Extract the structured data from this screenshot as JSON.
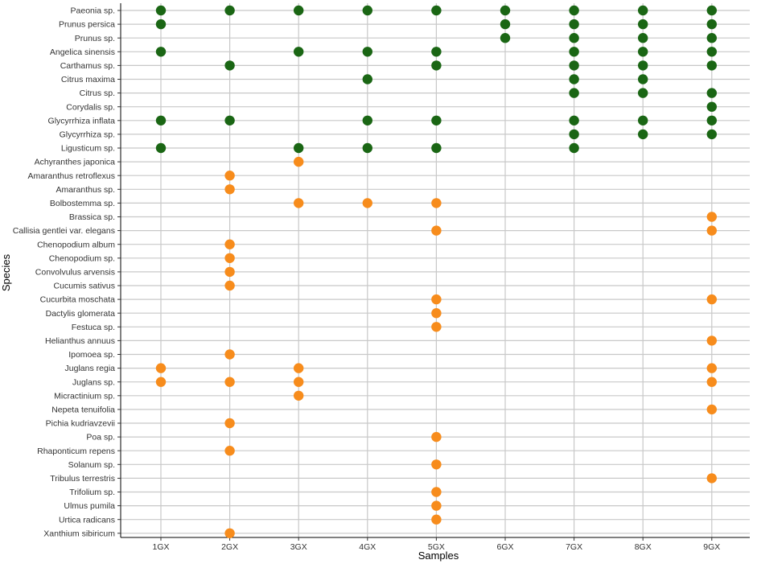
{
  "chart_data": {
    "type": "scatter",
    "xlabel": "Samples",
    "ylabel": "Species",
    "grid": true,
    "categories_x": [
      "1GX",
      "2GX",
      "3GX",
      "4GX",
      "5GX",
      "6GX",
      "7GX",
      "8GX",
      "9GX"
    ],
    "categories_y": [
      "Paeonia sp.",
      "Prunus persica",
      "Prunus sp.",
      "Angelica sinensis",
      "Carthamus sp.",
      "Citrus maxima",
      "Citrus sp.",
      "Corydalis sp.",
      "Glycyrrhiza inflata",
      "Glycyrrhiza sp.",
      "Ligusticum sp.",
      "Achyranthes japonica",
      "Amaranthus retroflexus",
      "Amaranthus sp.",
      "Bolbostemma sp.",
      "Brassica sp.",
      "Callisia gentlei var. elegans",
      "Chenopodium album",
      "Chenopodium sp.",
      "Convolvulus arvensis",
      "Cucumis sativus",
      "Cucurbita moschata",
      "Dactylis glomerata",
      "Festuca sp.",
      "Helianthus annuus",
      "Ipomoea sp.",
      "Juglans regia",
      "Juglans sp.",
      "Micractinium sp.",
      "Nepeta tenuifolia",
      "Pichia kudriavzevii",
      "Poa sp.",
      "Rhaponticum repens",
      "Solanum sp.",
      "Tribulus terrestris",
      "Trifolium sp.",
      "Ulmus pumila",
      "Urtica radicans",
      "Xanthium sibiricum"
    ],
    "colors": {
      "group_1": "#1a6614",
      "group_2": "#f78c1c"
    },
    "points": [
      {
        "y": "Paeonia sp.",
        "x": "1GX",
        "group": 1
      },
      {
        "y": "Paeonia sp.",
        "x": "2GX",
        "group": 1
      },
      {
        "y": "Paeonia sp.",
        "x": "3GX",
        "group": 1
      },
      {
        "y": "Paeonia sp.",
        "x": "4GX",
        "group": 1
      },
      {
        "y": "Paeonia sp.",
        "x": "5GX",
        "group": 1
      },
      {
        "y": "Paeonia sp.",
        "x": "6GX",
        "group": 1
      },
      {
        "y": "Paeonia sp.",
        "x": "7GX",
        "group": 1
      },
      {
        "y": "Paeonia sp.",
        "x": "8GX",
        "group": 1
      },
      {
        "y": "Paeonia sp.",
        "x": "9GX",
        "group": 1
      },
      {
        "y": "Prunus persica",
        "x": "1GX",
        "group": 1
      },
      {
        "y": "Prunus persica",
        "x": "6GX",
        "group": 1
      },
      {
        "y": "Prunus persica",
        "x": "7GX",
        "group": 1
      },
      {
        "y": "Prunus persica",
        "x": "8GX",
        "group": 1
      },
      {
        "y": "Prunus persica",
        "x": "9GX",
        "group": 1
      },
      {
        "y": "Prunus sp.",
        "x": "6GX",
        "group": 1
      },
      {
        "y": "Prunus sp.",
        "x": "7GX",
        "group": 1
      },
      {
        "y": "Prunus sp.",
        "x": "8GX",
        "group": 1
      },
      {
        "y": "Prunus sp.",
        "x": "9GX",
        "group": 1
      },
      {
        "y": "Angelica sinensis",
        "x": "1GX",
        "group": 1
      },
      {
        "y": "Angelica sinensis",
        "x": "3GX",
        "group": 1
      },
      {
        "y": "Angelica sinensis",
        "x": "4GX",
        "group": 1
      },
      {
        "y": "Angelica sinensis",
        "x": "5GX",
        "group": 1
      },
      {
        "y": "Angelica sinensis",
        "x": "7GX",
        "group": 1
      },
      {
        "y": "Angelica sinensis",
        "x": "8GX",
        "group": 1
      },
      {
        "y": "Angelica sinensis",
        "x": "9GX",
        "group": 1
      },
      {
        "y": "Carthamus sp.",
        "x": "2GX",
        "group": 1
      },
      {
        "y": "Carthamus sp.",
        "x": "5GX",
        "group": 1
      },
      {
        "y": "Carthamus sp.",
        "x": "7GX",
        "group": 1
      },
      {
        "y": "Carthamus sp.",
        "x": "8GX",
        "group": 1
      },
      {
        "y": "Carthamus sp.",
        "x": "9GX",
        "group": 1
      },
      {
        "y": "Citrus maxima",
        "x": "4GX",
        "group": 1
      },
      {
        "y": "Citrus maxima",
        "x": "7GX",
        "group": 1
      },
      {
        "y": "Citrus maxima",
        "x": "8GX",
        "group": 1
      },
      {
        "y": "Citrus sp.",
        "x": "7GX",
        "group": 1
      },
      {
        "y": "Citrus sp.",
        "x": "8GX",
        "group": 1
      },
      {
        "y": "Citrus sp.",
        "x": "9GX",
        "group": 1
      },
      {
        "y": "Corydalis sp.",
        "x": "9GX",
        "group": 1
      },
      {
        "y": "Glycyrrhiza inflata",
        "x": "1GX",
        "group": 1
      },
      {
        "y": "Glycyrrhiza inflata",
        "x": "2GX",
        "group": 1
      },
      {
        "y": "Glycyrrhiza inflata",
        "x": "4GX",
        "group": 1
      },
      {
        "y": "Glycyrrhiza inflata",
        "x": "5GX",
        "group": 1
      },
      {
        "y": "Glycyrrhiza inflata",
        "x": "7GX",
        "group": 1
      },
      {
        "y": "Glycyrrhiza inflata",
        "x": "8GX",
        "group": 1
      },
      {
        "y": "Glycyrrhiza inflata",
        "x": "9GX",
        "group": 1
      },
      {
        "y": "Glycyrrhiza sp.",
        "x": "7GX",
        "group": 1
      },
      {
        "y": "Glycyrrhiza sp.",
        "x": "8GX",
        "group": 1
      },
      {
        "y": "Glycyrrhiza sp.",
        "x": "9GX",
        "group": 1
      },
      {
        "y": "Ligusticum sp.",
        "x": "1GX",
        "group": 1
      },
      {
        "y": "Ligusticum sp.",
        "x": "3GX",
        "group": 1
      },
      {
        "y": "Ligusticum sp.",
        "x": "4GX",
        "group": 1
      },
      {
        "y": "Ligusticum sp.",
        "x": "5GX",
        "group": 1
      },
      {
        "y": "Ligusticum sp.",
        "x": "7GX",
        "group": 1
      },
      {
        "y": "Achyranthes japonica",
        "x": "3GX",
        "group": 2
      },
      {
        "y": "Amaranthus retroflexus",
        "x": "2GX",
        "group": 2
      },
      {
        "y": "Amaranthus sp.",
        "x": "2GX",
        "group": 2
      },
      {
        "y": "Bolbostemma sp.",
        "x": "3GX",
        "group": 2
      },
      {
        "y": "Bolbostemma sp.",
        "x": "4GX",
        "group": 2
      },
      {
        "y": "Bolbostemma sp.",
        "x": "5GX",
        "group": 2
      },
      {
        "y": "Brassica sp.",
        "x": "9GX",
        "group": 2
      },
      {
        "y": "Callisia gentlei var. elegans",
        "x": "5GX",
        "group": 2
      },
      {
        "y": "Callisia gentlei var. elegans",
        "x": "9GX",
        "group": 2
      },
      {
        "y": "Chenopodium album",
        "x": "2GX",
        "group": 2
      },
      {
        "y": "Chenopodium sp.",
        "x": "2GX",
        "group": 2
      },
      {
        "y": "Convolvulus arvensis",
        "x": "2GX",
        "group": 2
      },
      {
        "y": "Cucumis sativus",
        "x": "2GX",
        "group": 2
      },
      {
        "y": "Cucurbita moschata",
        "x": "5GX",
        "group": 2
      },
      {
        "y": "Cucurbita moschata",
        "x": "9GX",
        "group": 2
      },
      {
        "y": "Dactylis glomerata",
        "x": "5GX",
        "group": 2
      },
      {
        "y": "Festuca sp.",
        "x": "5GX",
        "group": 2
      },
      {
        "y": "Helianthus annuus",
        "x": "9GX",
        "group": 2
      },
      {
        "y": "Ipomoea sp.",
        "x": "2GX",
        "group": 2
      },
      {
        "y": "Juglans regia",
        "x": "1GX",
        "group": 2
      },
      {
        "y": "Juglans regia",
        "x": "3GX",
        "group": 2
      },
      {
        "y": "Juglans regia",
        "x": "9GX",
        "group": 2
      },
      {
        "y": "Juglans sp.",
        "x": "1GX",
        "group": 2
      },
      {
        "y": "Juglans sp.",
        "x": "2GX",
        "group": 2
      },
      {
        "y": "Juglans sp.",
        "x": "3GX",
        "group": 2
      },
      {
        "y": "Juglans sp.",
        "x": "9GX",
        "group": 2
      },
      {
        "y": "Micractinium sp.",
        "x": "3GX",
        "group": 2
      },
      {
        "y": "Nepeta tenuifolia",
        "x": "9GX",
        "group": 2
      },
      {
        "y": "Pichia kudriavzevii",
        "x": "2GX",
        "group": 2
      },
      {
        "y": "Poa sp.",
        "x": "5GX",
        "group": 2
      },
      {
        "y": "Rhaponticum repens",
        "x": "2GX",
        "group": 2
      },
      {
        "y": "Solanum sp.",
        "x": "5GX",
        "group": 2
      },
      {
        "y": "Tribulus terrestris",
        "x": "9GX",
        "group": 2
      },
      {
        "y": "Trifolium sp.",
        "x": "5GX",
        "group": 2
      },
      {
        "y": "Ulmus pumila",
        "x": "5GX",
        "group": 2
      },
      {
        "y": "Urtica radicans",
        "x": "5GX",
        "group": 2
      },
      {
        "y": "Xanthium sibiricum",
        "x": "2GX",
        "group": 2
      }
    ]
  }
}
